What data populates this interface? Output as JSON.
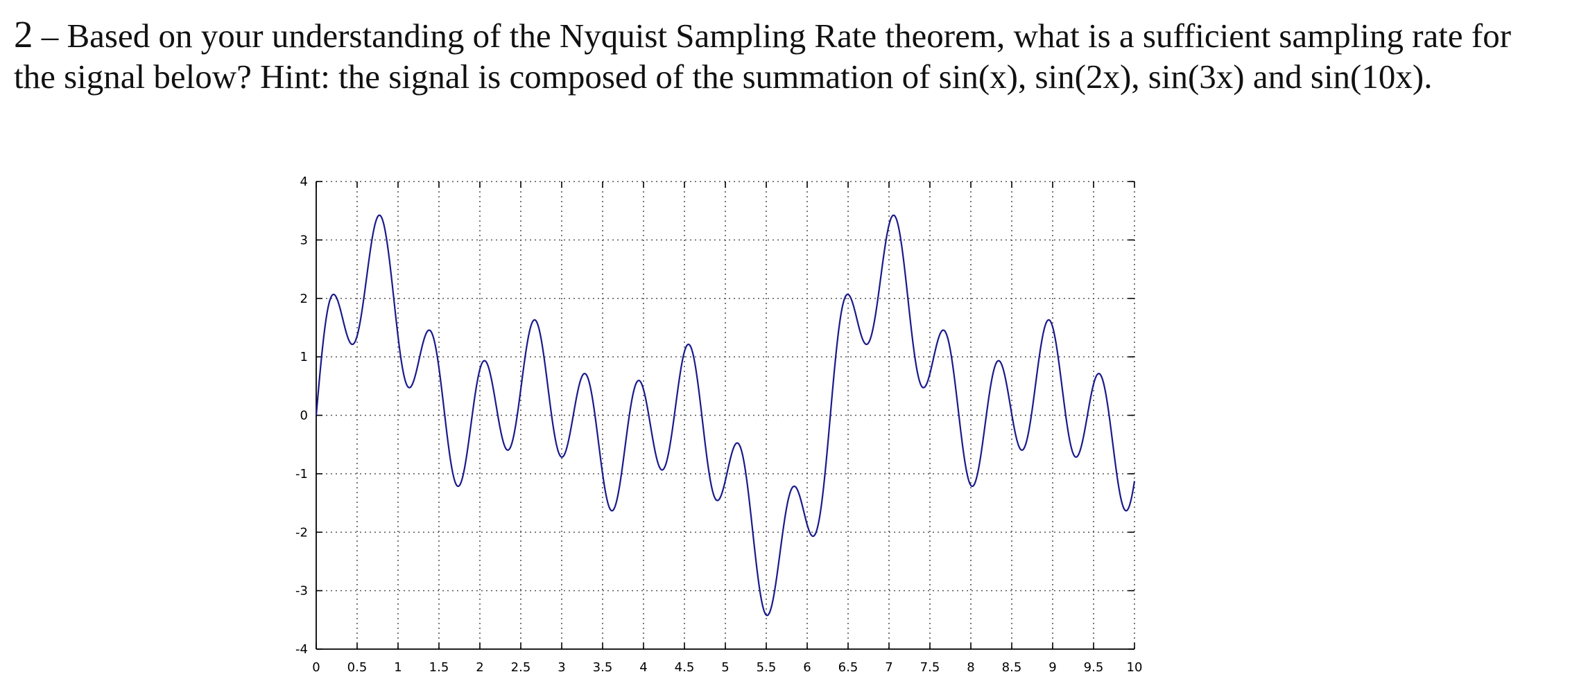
{
  "question": {
    "number": "2",
    "line1": "– Based on your understanding of the Nyquist Sampling Rate theorem, what is a sufficient sampling rate for",
    "line2": "the signal below? Hint: the signal is composed of the summation of sin(x), sin(2x), sin(3x) and sin(10x)."
  },
  "chart_data": {
    "type": "line",
    "title": "",
    "xlabel": "",
    "ylabel": "",
    "xlim": [
      0,
      10
    ],
    "ylim": [
      -4,
      4
    ],
    "grid": true,
    "x_ticks": [
      0,
      0.5,
      1,
      1.5,
      2,
      2.5,
      3,
      3.5,
      4,
      4.5,
      5,
      5.5,
      6,
      6.5,
      7,
      7.5,
      8,
      8.5,
      9,
      9.5,
      10
    ],
    "x_tick_labels": [
      "0",
      "0.5",
      "1",
      "1.5",
      "2",
      "2.5",
      "3",
      "3.5",
      "4",
      "4.5",
      "5",
      "5.5",
      "6",
      "6.5",
      "7",
      "7.5",
      "8",
      "8.5",
      "9",
      "9.5",
      "10"
    ],
    "y_ticks": [
      -4,
      -3,
      -2,
      -1,
      0,
      1,
      2,
      3,
      4
    ],
    "y_tick_labels": [
      "-4",
      "-3",
      "-2",
      "-1",
      "0",
      "1",
      "2",
      "3",
      "4"
    ],
    "series": [
      {
        "function": "sin(x) + sin(2x) + sin(3x) + sin(10x)",
        "x_start": 0,
        "x_end": 10,
        "color": "#1a1a8c"
      }
    ]
  }
}
